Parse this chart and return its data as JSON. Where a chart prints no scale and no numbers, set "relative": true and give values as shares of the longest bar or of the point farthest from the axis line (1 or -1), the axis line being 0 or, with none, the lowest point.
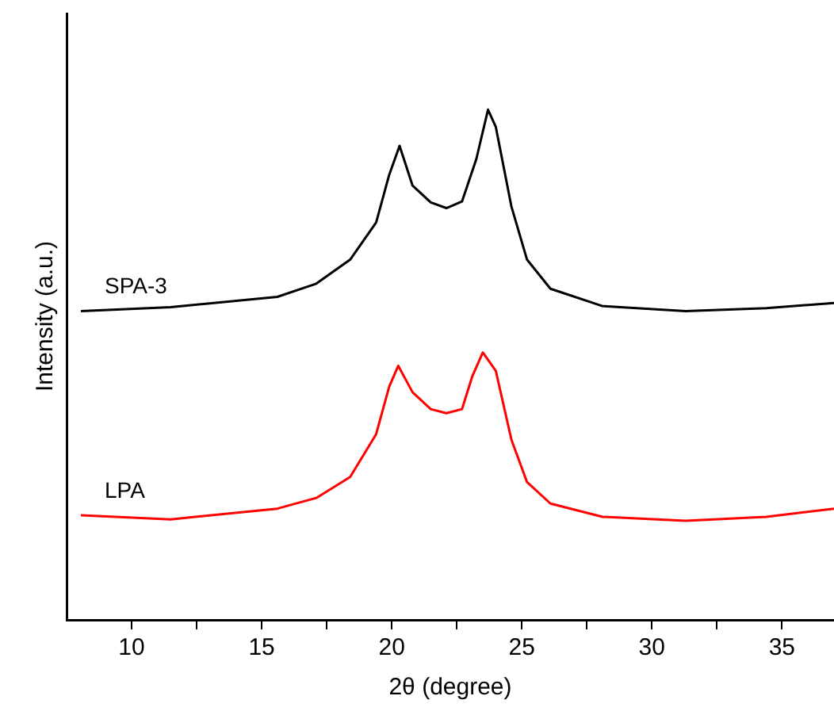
{
  "chart_data": {
    "type": "line",
    "xlabel": "2θ (degree)",
    "ylabel": "Intensity (a.u.)",
    "relative": true,
    "legend": false,
    "grid": false,
    "marker": "none",
    "line_style": "solid",
    "xlim": [
      7.5,
      37
    ],
    "xticks": [
      10,
      {
        "value": 12.5,
        "label": null
      },
      15,
      {
        "value": 17.5,
        "label": null
      },
      20,
      {
        "value": 22.5,
        "label": null
      },
      25,
      {
        "value": 27.5,
        "label": null
      },
      30,
      {
        "value": 32.5,
        "label": null
      },
      35
    ],
    "series": [
      {
        "name": "SPA-3",
        "color": "#000000",
        "x": [
          8.05,
          11.5,
          15.6,
          17.1,
          18.4,
          19.4,
          19.9,
          20.3,
          20.8,
          21.5,
          22.1,
          22.7,
          23.25,
          23.7,
          24.0,
          24.6,
          25.2,
          26.1,
          28.1,
          31.3,
          34.4,
          37.0
        ],
        "values": [
          0.605,
          0.613,
          0.633,
          0.659,
          0.706,
          0.779,
          0.872,
          0.929,
          0.851,
          0.818,
          0.807,
          0.82,
          0.903,
          1,
          0.966,
          0.81,
          0.706,
          0.649,
          0.615,
          0.605,
          0.611,
          0.621
        ]
      },
      {
        "name": "LPA",
        "color": "#ff0000",
        "x": [
          8.05,
          11.5,
          15.6,
          17.1,
          18.4,
          19.4,
          19.9,
          20.25,
          20.8,
          21.5,
          22.1,
          22.7,
          23.1,
          23.5,
          24.0,
          24.6,
          25.2,
          26.1,
          28.1,
          31.3,
          34.4,
          37.0
        ],
        "values": [
          0.205,
          0.197,
          0.218,
          0.239,
          0.28,
          0.364,
          0.457,
          0.498,
          0.446,
          0.413,
          0.405,
          0.413,
          0.478,
          0.524,
          0.488,
          0.353,
          0.27,
          0.228,
          0.202,
          0.194,
          0.202,
          0.218
        ]
      }
    ]
  }
}
